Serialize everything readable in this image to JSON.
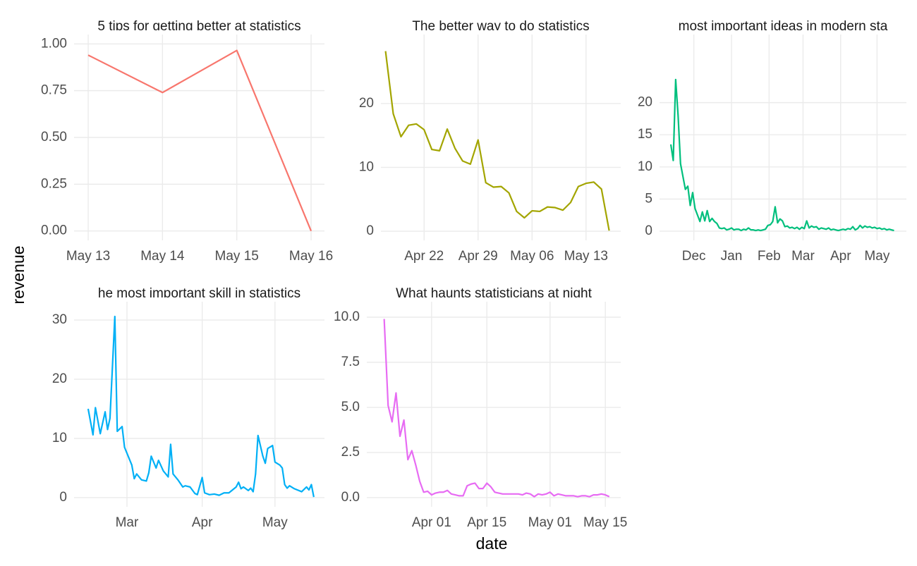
{
  "xlabel": "date",
  "ylabel": "revenue",
  "chart_data": [
    {
      "type": "line",
      "title": "5 tips for getting better at statistics",
      "color": "#F8766D",
      "x": [
        0,
        1,
        2,
        3
      ],
      "values": [
        0.94,
        0.74,
        0.965,
        0
      ],
      "xlim": [
        -0.19,
        3.18
      ],
      "xticks": [
        {
          "value": 0,
          "label": "May 13"
        },
        {
          "value": 1,
          "label": "May 14"
        },
        {
          "value": 2,
          "label": "May 15"
        },
        {
          "value": 3,
          "label": "May 16"
        }
      ],
      "ylim": [
        -0.05,
        1.05
      ],
      "yticks": [
        {
          "value": 0,
          "label": "0.00"
        },
        {
          "value": 0.25,
          "label": "0.25"
        },
        {
          "value": 0.5,
          "label": "0.50"
        },
        {
          "value": 0.75,
          "label": "0.75"
        },
        {
          "value": 1,
          "label": "1.00"
        }
      ],
      "grid": true
    },
    {
      "type": "line",
      "title": "The better way to do statistics",
      "color": "#A3A500",
      "x": [
        107,
        108,
        109,
        110,
        111,
        112,
        113,
        114,
        115,
        116,
        117,
        118,
        119,
        120,
        121,
        122,
        123,
        124,
        125,
        126,
        127,
        128,
        129,
        130,
        131,
        132,
        133,
        134,
        135,
        136
      ],
      "values": [
        28.2,
        18.4,
        14.8,
        16.6,
        16.8,
        15.9,
        12.8,
        12.6,
        16.0,
        13.0,
        11.0,
        10.5,
        14.3,
        7.6,
        6.9,
        7.0,
        6.0,
        3.1,
        2.1,
        3.2,
        3.1,
        3.8,
        3.7,
        3.3,
        4.5,
        7.0,
        7.5,
        7.7,
        6.6,
        0.1
      ],
      "xlim": [
        106.4,
        137.5
      ],
      "xticks": [
        {
          "value": 112,
          "label": "Apr 22"
        },
        {
          "value": 119,
          "label": "Apr 29"
        },
        {
          "value": 126,
          "label": "May 06"
        },
        {
          "value": 133,
          "label": "May 13"
        }
      ],
      "ylim": [
        -1.43,
        30.8
      ],
      "yticks": [
        0,
        10,
        20
      ],
      "grid": true
    },
    {
      "type": "line",
      "title": "most important ideas in modern sta",
      "color": "#00BF7D",
      "x": [
        -50,
        -48,
        -46,
        -44,
        -42,
        -40,
        -38,
        -36,
        -34,
        -32,
        -30,
        -28,
        -26,
        -24,
        -22,
        -20,
        -18,
        -16,
        -14,
        -12,
        -10,
        -8,
        -6,
        -4,
        -2,
        0,
        2,
        4,
        6,
        8,
        10,
        12,
        14,
        16,
        18,
        20,
        22,
        24,
        26,
        28,
        30,
        32,
        34,
        36,
        38,
        40,
        42,
        44,
        46,
        48,
        50,
        52,
        54,
        56,
        58,
        60,
        62,
        64,
        66,
        68,
        70,
        72,
        74,
        76,
        78,
        80,
        82,
        84,
        86,
        88,
        90,
        92,
        94,
        96,
        98,
        100,
        102,
        104,
        106,
        108,
        110,
        112,
        114,
        116,
        118,
        120,
        122,
        124,
        126,
        128,
        130,
        132,
        134
      ],
      "values": [
        13.5,
        11.0,
        23.6,
        18.0,
        10.5,
        8.5,
        6.5,
        7.0,
        4.0,
        6.0,
        3.5,
        2.5,
        1.5,
        3.0,
        1.6,
        3.2,
        1.5,
        2.0,
        1.5,
        1.2,
        0.5,
        0.4,
        0.5,
        0.2,
        0.3,
        0.5,
        0.2,
        0.3,
        0.3,
        0.1,
        0.3,
        0.2,
        0.5,
        0.2,
        0.2,
        0.1,
        0.2,
        0.1,
        0.2,
        0.3,
        0.9,
        1.0,
        1.5,
        3.8,
        1.3,
        1.9,
        1.6,
        0.7,
        0.8,
        0.5,
        0.6,
        0.4,
        0.6,
        0.3,
        0.6,
        0.4,
        1.6,
        0.5,
        0.8,
        0.6,
        0.7,
        0.3,
        0.5,
        0.4,
        0.3,
        0.5,
        0.2,
        0.3,
        0.2,
        0.1,
        0.2,
        0.3,
        0.2,
        0.4,
        0.3,
        0.7,
        0.2,
        0.4,
        0.9,
        0.5,
        0.8,
        0.6,
        0.7,
        0.5,
        0.6,
        0.4,
        0.5,
        0.3,
        0.4,
        0.2,
        0.3,
        0.2,
        0.1
      ],
      "xlim": [
        -59.3,
        144.2
      ],
      "xticks": [
        {
          "value": -31,
          "label": "Dec"
        },
        {
          "value": 0,
          "label": "Jan"
        },
        {
          "value": 31,
          "label": "Feb"
        },
        {
          "value": 59,
          "label": "Mar"
        },
        {
          "value": 90,
          "label": "Apr"
        },
        {
          "value": 120,
          "label": "May"
        }
      ],
      "ylim": [
        -1.43,
        30.6
      ],
      "yticks": [
        0,
        5,
        10,
        15,
        20
      ],
      "grid": true
    },
    {
      "type": "line",
      "title": "he most important skill in statistics",
      "color": "#00B0F6",
      "x": [
        43,
        45,
        46,
        48,
        50,
        51,
        52,
        54,
        55,
        57,
        58,
        61,
        62,
        63,
        65,
        67,
        68,
        69,
        71,
        72,
        74,
        76,
        77,
        78,
        80,
        82,
        83,
        85,
        87,
        88,
        90,
        91,
        93,
        95,
        97,
        99,
        101,
        104,
        105,
        106,
        107,
        109,
        110,
        111,
        112,
        113,
        115,
        116,
        117,
        119,
        120,
        122,
        123,
        124,
        125,
        126,
        128,
        131,
        133,
        134,
        135,
        136
      ],
      "values": [
        15.0,
        10.6,
        15.2,
        10.8,
        14.5,
        11.5,
        13.4,
        30.6,
        11.2,
        12.0,
        8.5,
        5.5,
        3.2,
        4.0,
        3.0,
        2.8,
        4.2,
        7.0,
        5.0,
        6.3,
        4.5,
        3.5,
        9.0,
        4.0,
        3.0,
        1.8,
        2.0,
        1.8,
        0.7,
        0.5,
        3.4,
        0.8,
        0.5,
        0.6,
        0.4,
        0.8,
        0.8,
        1.8,
        2.6,
        1.5,
        1.8,
        1.2,
        1.6,
        1.0,
        4.0,
        10.5,
        7.0,
        5.8,
        8.3,
        8.8,
        6.0,
        5.5,
        5.0,
        2.2,
        1.6,
        2.0,
        1.5,
        1.0,
        1.8,
        1.3,
        2.2,
        0.1
      ],
      "xlim": [
        37.2,
        140.4
      ],
      "xticks": [
        {
          "value": 59,
          "label": "Mar"
        },
        {
          "value": 90,
          "label": "Apr"
        },
        {
          "value": 120,
          "label": "May"
        }
      ],
      "ylim": [
        -1.55,
        33.1
      ],
      "yticks": [
        0,
        10,
        20,
        30
      ],
      "grid": true
    },
    {
      "type": "line",
      "title": "What haunts statisticians at night",
      "color": "#E76BF3",
      "x": [
        79,
        80,
        81,
        82,
        83,
        84,
        85,
        86,
        87,
        88,
        89,
        90,
        91,
        92,
        93,
        94,
        95,
        96,
        97,
        98,
        99,
        100,
        101,
        102,
        103,
        104,
        105,
        106,
        107,
        108,
        109,
        110,
        111,
        112,
        113,
        114,
        115,
        116,
        117,
        118,
        119,
        120,
        121,
        122,
        123,
        124,
        125,
        126,
        127,
        128,
        129,
        130,
        131,
        132,
        133,
        134,
        135,
        136
      ],
      "values": [
        9.9,
        5.1,
        4.2,
        5.8,
        3.4,
        4.3,
        2.1,
        2.6,
        1.8,
        0.9,
        0.3,
        0.35,
        0.15,
        0.25,
        0.3,
        0.3,
        0.4,
        0.2,
        0.15,
        0.1,
        0.1,
        0.65,
        0.75,
        0.8,
        0.5,
        0.5,
        0.8,
        0.6,
        0.3,
        0.25,
        0.2,
        0.2,
        0.2,
        0.2,
        0.2,
        0.15,
        0.25,
        0.2,
        0.05,
        0.2,
        0.15,
        0.2,
        0.3,
        0.1,
        0.2,
        0.15,
        0.1,
        0.1,
        0.1,
        0.05,
        0.1,
        0.1,
        0.05,
        0.15,
        0.15,
        0.2,
        0.15,
        0.05
      ],
      "xlim": [
        74.6,
        138.9
      ],
      "xticks": [
        {
          "value": 91,
          "label": "Apr 01"
        },
        {
          "value": 105,
          "label": "Apr 15"
        },
        {
          "value": 121,
          "label": "May 01"
        },
        {
          "value": 135,
          "label": "May 15"
        }
      ],
      "ylim": [
        -0.51,
        10.86
      ],
      "yticks": [
        {
          "value": 0,
          "label": "0.0"
        },
        {
          "value": 2.5,
          "label": "2.5"
        },
        {
          "value": 5,
          "label": "5.0"
        },
        {
          "value": 7.5,
          "label": "7.5"
        },
        {
          "value": 10,
          "label": "10.0"
        }
      ],
      "grid": true
    }
  ]
}
